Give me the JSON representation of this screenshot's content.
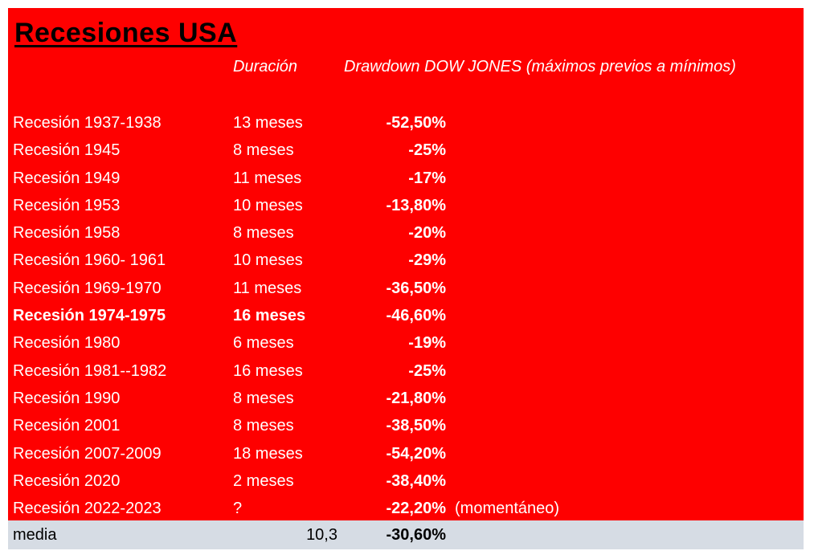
{
  "title": "Recesiones USA",
  "headers": {
    "duration": "Duración",
    "drawdown": "Drawdown DOW JONES (máximos previos a mínimos)"
  },
  "rows": [
    {
      "name": "Recesión 1937-1938",
      "duration": "13 meses",
      "drawdown": "-52,50%",
      "note": "",
      "bold": false
    },
    {
      "name": "Recesión 1945",
      "duration": "8 meses",
      "drawdown": "-25%",
      "note": "",
      "bold": false
    },
    {
      "name": "Recesión 1949",
      "duration": "11 meses",
      "drawdown": "-17%",
      "note": "",
      "bold": false
    },
    {
      "name": "Recesión 1953",
      "duration": "10 meses",
      "drawdown": "-13,80%",
      "note": "",
      "bold": false
    },
    {
      "name": "Recesión 1958",
      "duration": "8 meses",
      "drawdown": "-20%",
      "note": "",
      "bold": false
    },
    {
      "name": "Recesión 1960- 1961",
      "duration": "10 meses",
      "drawdown": "-29%",
      "note": "",
      "bold": false
    },
    {
      "name": "Recesión 1969-1970",
      "duration": "11 meses",
      "drawdown": "-36,50%",
      "note": "",
      "bold": false
    },
    {
      "name": "Recesión 1974-1975",
      "duration": "16 meses",
      "drawdown": "-46,60%",
      "note": "",
      "bold": true
    },
    {
      "name": "Recesión 1980",
      "duration": "6 meses",
      "drawdown": "-19%",
      "note": "",
      "bold": false
    },
    {
      "name": "Recesión 1981--1982",
      "duration": "16 meses",
      "drawdown": "-25%",
      "note": "",
      "bold": false
    },
    {
      "name": "Recesión 1990",
      "duration": "8 meses",
      "drawdown": "-21,80%",
      "note": "",
      "bold": false
    },
    {
      "name": "Recesión 2001",
      "duration": "8 meses",
      "drawdown": "-38,50%",
      "note": "",
      "bold": false
    },
    {
      "name": "Recesión 2007-2009",
      "duration": "18 meses",
      "drawdown": "-54,20%",
      "note": "",
      "bold": false
    },
    {
      "name": "Recesión 2020",
      "duration": "2 meses",
      "drawdown": "-38,40%",
      "note": "",
      "bold": false
    },
    {
      "name": "Recesión 2022-2023",
      "duration": "?",
      "drawdown": "-22,20%",
      "note": "(momentáneo)",
      "bold": false
    }
  ],
  "footer": {
    "label": "media",
    "avg_duration": "10,3",
    "avg_drawdown": "-30,60%"
  },
  "colors": {
    "background": "#fe0000",
    "footer": "#d6dce4",
    "text": "#ffffff"
  }
}
